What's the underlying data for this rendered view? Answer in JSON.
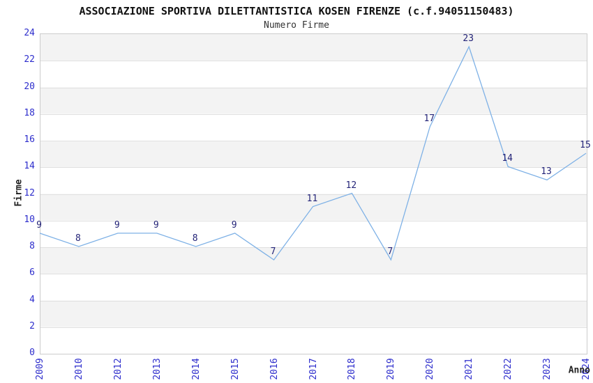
{
  "header": {
    "title": "ASSOCIAZIONE SPORTIVA DILETTANTISTICA KOSEN FIRENZE (c.f.94051150483)",
    "subtitle": "Numero Firme"
  },
  "colors": {
    "line": "#7eb1e6",
    "tick_label": "#2d2dcc",
    "data_label": "#242478",
    "band_gray": "#f3f3f3",
    "gridline": "#e0e0e0",
    "plot_border": "#cccccc",
    "background": "#ffffff"
  },
  "chart_data": {
    "type": "line",
    "title": "ASSOCIAZIONE SPORTIVA DILETTANTISTICA KOSEN FIRENZE (c.f.94051150483)",
    "subtitle": "Numero Firme",
    "xlabel": "Anno",
    "ylabel": "Firme",
    "categories": [
      "2009",
      "2010",
      "2012",
      "2013",
      "2014",
      "2015",
      "2016",
      "2017",
      "2018",
      "2019",
      "2020",
      "2021",
      "2022",
      "2023",
      "2024"
    ],
    "values": [
      9,
      8,
      9,
      9,
      8,
      9,
      7,
      11,
      12,
      7,
      17,
      23,
      14,
      13,
      15
    ],
    "ylim": [
      0,
      24
    ],
    "ytick_step": 2,
    "grid": true,
    "banded_background": true,
    "legend_position": "none",
    "data_labels_shown": true,
    "line_color": "#7eb1e6",
    "markers": "none"
  }
}
